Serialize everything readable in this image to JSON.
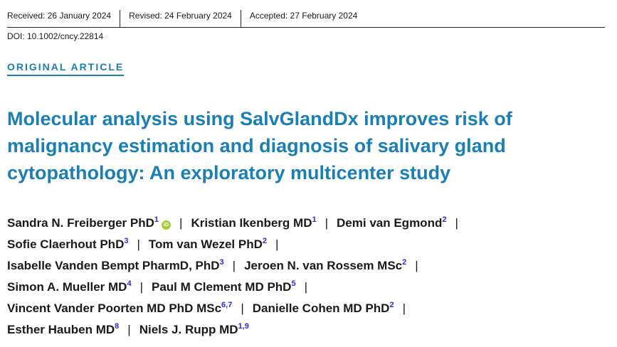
{
  "header": {
    "received": "Received: 26 January 2024",
    "revised": "Revised: 24 February 2024",
    "accepted": "Accepted: 27 February 2024",
    "doi": "DOI: 10.1002/cncy.22814"
  },
  "article_type": "ORIGINAL ARTICLE",
  "title": "Molecular analysis using SalvGlandDx improves risk of malignancy estimation and diagnosis of salivary gland cytopathology: An exploratory multicenter study",
  "orcid_icon_text": "iD",
  "separator": "|",
  "author_lines": [
    [
      {
        "name": "Sandra N. Freiberger PhD",
        "aff": "1",
        "orcid": true
      },
      {
        "name": "Kristian Ikenberg MD",
        "aff": "1"
      },
      {
        "name": "Demi van Egmond",
        "aff": "2"
      }
    ],
    [
      {
        "name": "Sofie Claerhout PhD",
        "aff": "3"
      },
      {
        "name": "Tom van Wezel PhD",
        "aff": "2"
      }
    ],
    [
      {
        "name": "Isabelle Vanden Bempt PharmD, PhD",
        "aff": "3"
      },
      {
        "name": "Jeroen N. van Rossem MSc",
        "aff": "2"
      }
    ],
    [
      {
        "name": "Simon A. Mueller MD",
        "aff": "4"
      },
      {
        "name": "Paul M Clement MD PhD",
        "aff": "5"
      }
    ],
    [
      {
        "name": "Vincent Vander Poorten MD PhD MSc",
        "aff": "6,7"
      },
      {
        "name": "Danielle Cohen MD PhD",
        "aff": "2"
      }
    ],
    [
      {
        "name": "Esther Hauben MD",
        "aff": "8"
      },
      {
        "name": "Niels J. Rupp MD",
        "aff": "1,9"
      }
    ]
  ],
  "line_ends_with_separator": [
    true,
    true,
    true,
    true,
    true,
    false
  ],
  "colors": {
    "accent": "#1a7fb5",
    "affiliation": "#2a2ad8",
    "orcid": "#a6ce39"
  }
}
